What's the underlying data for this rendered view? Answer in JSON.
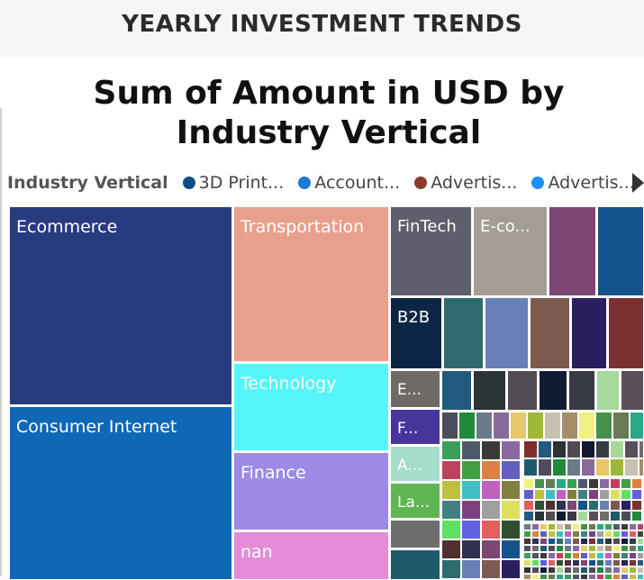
{
  "header": {
    "title": "YEARLY INVESTMENT TRENDS"
  },
  "chart_title": "Sum of Amount in USD by Industry Vertical",
  "legend": {
    "title": "Industry Vertical",
    "items": [
      {
        "label": "3D Print...",
        "color": "#0f4c81"
      },
      {
        "label": "Account...",
        "color": "#1f78d1"
      },
      {
        "label": "Advertis...",
        "color": "#8b3a2e"
      },
      {
        "label": "Advertis...",
        "color": "#1e90ff"
      }
    ]
  },
  "chart_data": {
    "type": "treemap",
    "title": "Sum of Amount in USD by Industry Vertical",
    "legend_title": "Industry Vertical",
    "visible_labels": [
      "Ecommerce",
      "Consumer Internet",
      "Transportation",
      "Technology",
      "Finance",
      "nan",
      "FinTech",
      "E-co...",
      "B2B",
      "E...",
      "F...",
      "A...",
      "La..."
    ],
    "labeled_tiles": [
      {
        "label": "Ecommerce",
        "color": "#283b80"
      },
      {
        "label": "Consumer Internet",
        "color": "#0e68b4"
      },
      {
        "label": "Transportation",
        "color": "#e8a08c"
      },
      {
        "label": "Technology",
        "color": "#55f6fa"
      },
      {
        "label": "Finance",
        "color": "#9d8ae6"
      },
      {
        "label": "nan",
        "color": "#e58bd7"
      },
      {
        "label": "FinTech",
        "color": "#5f5e6d"
      },
      {
        "label": "E-co...",
        "color": "#a59d94"
      },
      {
        "label": "B2B",
        "color": "#0d2545"
      },
      {
        "label": "E...",
        "color": "#6e6a66"
      },
      {
        "label": "F...",
        "color": "#47359c"
      },
      {
        "label": "A...",
        "color": "#a6dccc"
      },
      {
        "label": "La...",
        "color": "#5fb552"
      }
    ],
    "palette": [
      "#7a4872",
      "#14548c",
      "#2f6b6e",
      "#6880b6",
      "#7d5a50",
      "#2b1e5e",
      "#7c2f2f",
      "#235a80",
      "#2a3436",
      "#534b52",
      "#101a33",
      "#383a44",
      "#a6d99a",
      "#5a4e58",
      "#6f6e6e",
      "#1e5a6a",
      "#4b4e5a",
      "#1f8a3a",
      "#6a7a8a",
      "#8a6a9a",
      "#e6c86b",
      "#a0b83a",
      "#c8c0b0",
      "#a58c6a",
      "#f0f080",
      "#46904a",
      "#6a7a52",
      "#2aa88a",
      "#3aa05a",
      "#4e5a6a",
      "#3a3a3a",
      "#8a6aa0",
      "#c04060",
      "#40a040",
      "#e08040",
      "#6060c0",
      "#c0c040",
      "#40c0c0",
      "#c060c0",
      "#808040",
      "#408080",
      "#804080",
      "#a0a0a0",
      "#e0e060",
      "#60e060",
      "#6060e0",
      "#e06060",
      "#305030",
      "#503030",
      "#303050"
    ]
  }
}
